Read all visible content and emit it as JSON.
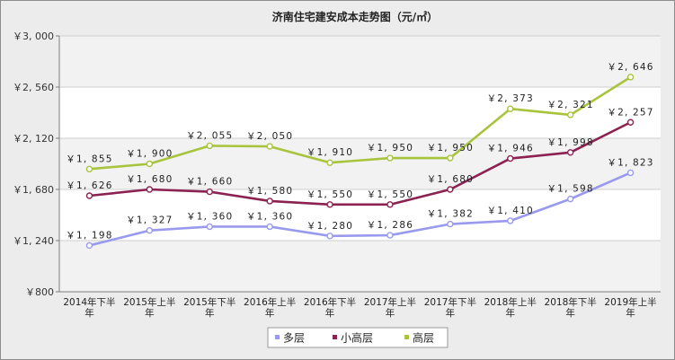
{
  "chart_data": {
    "type": "line",
    "title": "济南住宅建安成本走势图（元/㎡）",
    "categories": [
      "2014年下半年",
      "2015年上半年",
      "2015年下半年",
      "2016年上半年",
      "2016年下半年",
      "2017年上半年",
      "2017年下半年",
      "2018年上半年",
      "2018年下半年",
      "2019年上半年"
    ],
    "ylim": [
      800,
      3000
    ],
    "yticks": [
      800,
      1240,
      1680,
      2120,
      2560,
      3000
    ],
    "ytick_labels": [
      "￥800",
      "￥1, 240",
      "￥1, 680",
      "￥2, 120",
      "￥2, 560",
      "￥3, 000"
    ],
    "grid": true,
    "legend_position": "bottom",
    "series": [
      {
        "name": "多层",
        "color": "#9999ee",
        "values": [
          1198,
          1327,
          1360,
          1360,
          1280,
          1286,
          1382,
          1410,
          1598,
          1823
        ],
        "labels": [
          "￥1, 198",
          "￥1, 327",
          "￥1, 360",
          "￥1, 360",
          "￥1, 280",
          "￥1, 286",
          "￥1, 382",
          "￥1, 410",
          "￥1, 598",
          "￥1, 823"
        ]
      },
      {
        "name": "小高层",
        "color": "#8b2252",
        "values": [
          1626,
          1680,
          1660,
          1580,
          1550,
          1550,
          1680,
          1946,
          1998,
          2257
        ],
        "labels": [
          "￥1, 626",
          "￥1, 680",
          "￥1, 660",
          "￥1, 580",
          "￥1, 550",
          "￥1, 550",
          "￥1, 680",
          "￥1, 946",
          "￥1, 998",
          "￥2, 257"
        ]
      },
      {
        "name": "高层",
        "color": "#a8c43c",
        "values": [
          1855,
          1900,
          2055,
          2050,
          1910,
          1950,
          1950,
          2373,
          2321,
          2646
        ],
        "labels": [
          "￥1, 855",
          "￥1, 900",
          "￥2, 055",
          "￥2, 050",
          "￥1, 910",
          "￥1, 950",
          "￥1, 950",
          "￥2, 373",
          "￥2, 321",
          "￥2, 646"
        ]
      }
    ]
  }
}
